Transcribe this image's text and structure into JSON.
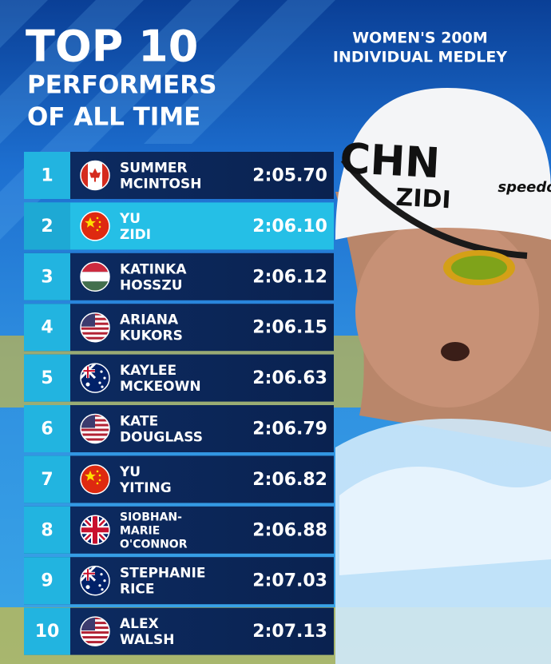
{
  "header": {
    "title": "TOP 10",
    "subtitle_lines": [
      "PERFORMERS",
      "OF ALL TIME"
    ],
    "event_lines": [
      "WOMEN'S 200M",
      "INDIVIDUAL MEDLEY"
    ]
  },
  "photo": {
    "cap_text": "CHN",
    "cap_name": "ZIDI",
    "brand": "speedo"
  },
  "table": {
    "rows": [
      {
        "rank": 1,
        "name": [
          "SUMMER",
          "MCINTOSH"
        ],
        "time": "2:05.70"
      },
      {
        "rank": 2,
        "name": [
          "YU",
          "ZIDI"
        ],
        "time": "2:06.10"
      },
      {
        "rank": 3,
        "name": [
          "KATINKA",
          "HOSSZU"
        ],
        "time": "2:06.12"
      },
      {
        "rank": 4,
        "name": [
          "ARIANA",
          "KUKORS"
        ],
        "time": "2:06.15"
      },
      {
        "rank": 5,
        "name": [
          "KAYLEE",
          "MCKEOWN"
        ],
        "time": "2:06.63"
      },
      {
        "rank": 6,
        "name": [
          "KATE",
          "DOUGLASS"
        ],
        "time": "2:06.79"
      },
      {
        "rank": 7,
        "name": [
          "YU",
          "YITING"
        ],
        "time": "2:06.82"
      },
      {
        "rank": 8,
        "name": [
          "SIOBHAN-",
          "MARIE",
          "O'CONNOR"
        ],
        "time": "2:06.88"
      },
      {
        "rank": 9,
        "name": [
          "STEPHANIE",
          "RICE"
        ],
        "time": "2:07.03"
      },
      {
        "rank": 10,
        "name": [
          "ALEX",
          "WALSH"
        ],
        "time": "2:07.13"
      }
    ]
  }
}
